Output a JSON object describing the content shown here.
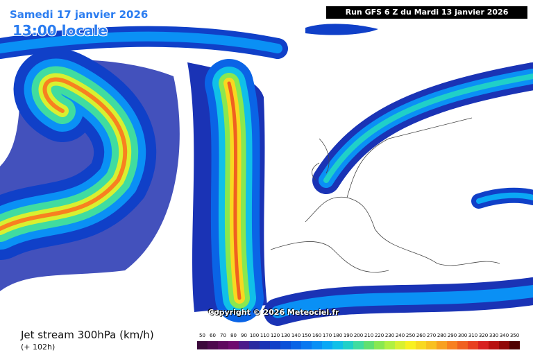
{
  "header": {
    "date": "Samedi 17 janvier 2026",
    "time": "13:00 locale",
    "run": "Run GFS 6 Z du Mardi 13 janvier 2026"
  },
  "copyright": "Copyright © 2026 Meteociel.fr",
  "footer": {
    "title": "Jet stream 300hPa (km/h)",
    "lead": "(+ 102h)"
  },
  "legend": {
    "stops": [
      {
        "label": 50,
        "color": "#3b0a3b"
      },
      {
        "label": 60,
        "color": "#4d0a4d"
      },
      {
        "label": 70,
        "color": "#5e0a5e"
      },
      {
        "label": 80,
        "color": "#6e0a6e"
      },
      {
        "label": 90,
        "color": "#4b1a8a"
      },
      {
        "label": 100,
        "color": "#2a2aa0"
      },
      {
        "label": 110,
        "color": "#1a33b5"
      },
      {
        "label": 120,
        "color": "#1040c8"
      },
      {
        "label": 130,
        "color": "#0a50d8"
      },
      {
        "label": 140,
        "color": "#0a64e6"
      },
      {
        "label": 150,
        "color": "#0a78f0"
      },
      {
        "label": 160,
        "color": "#0a90f5"
      },
      {
        "label": 170,
        "color": "#0aa8f5"
      },
      {
        "label": 180,
        "color": "#10c0e8"
      },
      {
        "label": 190,
        "color": "#20d0c8"
      },
      {
        "label": 200,
        "color": "#40dca0"
      },
      {
        "label": 210,
        "color": "#60e070"
      },
      {
        "label": 220,
        "color": "#88e850"
      },
      {
        "label": 230,
        "color": "#b0f040"
      },
      {
        "label": 240,
        "color": "#d8f030"
      },
      {
        "label": 250,
        "color": "#f8f020"
      },
      {
        "label": 260,
        "color": "#f8d820"
      },
      {
        "label": 270,
        "color": "#f8c020"
      },
      {
        "label": 280,
        "color": "#f8a020"
      },
      {
        "label": 290,
        "color": "#f88020"
      },
      {
        "label": 300,
        "color": "#f06020"
      },
      {
        "label": 310,
        "color": "#e84020"
      },
      {
        "label": 320,
        "color": "#d82020"
      },
      {
        "label": 330,
        "color": "#b81010"
      },
      {
        "label": 340,
        "color": "#900808"
      },
      {
        "label": 350,
        "color": "#500000"
      }
    ]
  }
}
